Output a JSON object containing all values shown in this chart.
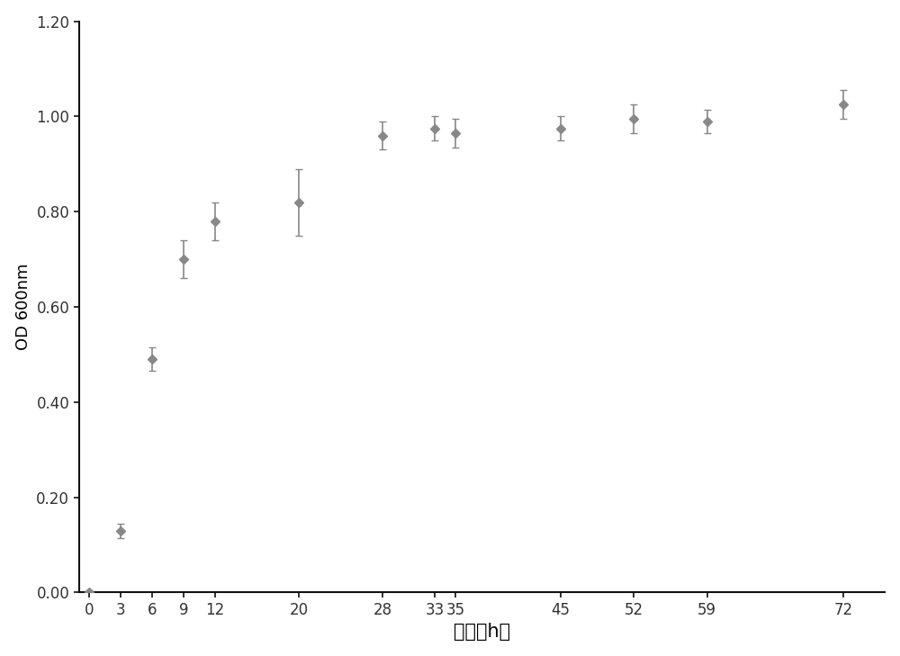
{
  "x": [
    0,
    3,
    6,
    9,
    12,
    20,
    28,
    33,
    35,
    45,
    52,
    59,
    72
  ],
  "y": [
    0.0,
    0.13,
    0.49,
    0.7,
    0.78,
    0.82,
    0.96,
    0.975,
    0.965,
    0.975,
    0.995,
    0.99,
    1.025
  ],
  "yerr": [
    0.005,
    0.015,
    0.025,
    0.04,
    0.04,
    0.07,
    0.03,
    0.025,
    0.03,
    0.025,
    0.03,
    0.025,
    0.03
  ],
  "xlabel": "时间（h）",
  "ylabel": "OD 600nm",
  "xlim": [
    -1,
    76
  ],
  "ylim": [
    0.0,
    1.2
  ],
  "yticks": [
    0.0,
    0.2,
    0.4,
    0.6,
    0.8,
    1.0,
    1.2
  ],
  "xticks": [
    0,
    3,
    6,
    9,
    12,
    20,
    28,
    33,
    35,
    45,
    52,
    59,
    72
  ],
  "line_color": "#888888",
  "marker_color": "#888888",
  "background_color": "#ffffff",
  "marker": "D",
  "markersize": 5,
  "linewidth": 1.5,
  "capsize": 3,
  "elinewidth": 1.2,
  "xlabel_fontsize": 15,
  "ylabel_fontsize": 13,
  "tick_fontsize": 12
}
